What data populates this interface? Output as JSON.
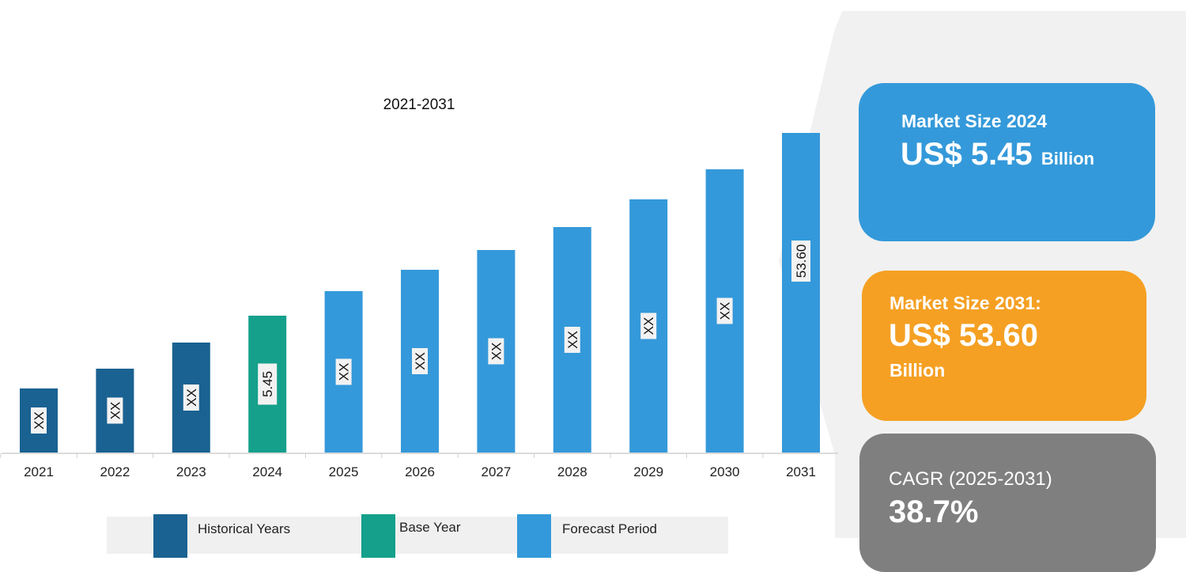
{
  "colors": {
    "historical": "#1a6292",
    "base": "#14a08b",
    "forecast": "#3499da",
    "card_2024": "#3499da",
    "card_2031": "#f5a023",
    "card_cagr": "#7f7f7f",
    "panel": "#f1f1f1"
  },
  "chart_data": {
    "type": "bar",
    "title": "2021-2031",
    "categories": [
      "2021",
      "2022",
      "2023",
      "2024",
      "2025",
      "2026",
      "2027",
      "2028",
      "2029",
      "2030",
      "2031"
    ],
    "values_relative": [
      81,
      106,
      139,
      173,
      204,
      231,
      256,
      285,
      320,
      358,
      404
    ],
    "data_labels": [
      "XX",
      "XX",
      "XX",
      "5.45",
      "XX",
      "XX",
      "XX",
      "XX",
      "XX",
      "XX",
      "53.60"
    ],
    "series_type": [
      "historical",
      "historical",
      "historical",
      "base",
      "forecast",
      "forecast",
      "forecast",
      "forecast",
      "forecast",
      "forecast",
      "forecast"
    ],
    "legend": [
      {
        "name": "Historical Years",
        "key": "historical"
      },
      {
        "name": "Base Year",
        "key": "base"
      },
      {
        "name": "Forecast Period",
        "key": "forecast"
      }
    ],
    "legend_position": "bottom",
    "grid": false,
    "xlabel": "",
    "ylabel": ""
  },
  "cards": {
    "size_2024": {
      "title": "Market Size 2024",
      "value": "US$ 5.45",
      "unit": "Billion"
    },
    "size_2031": {
      "title": "Market Size 2031:",
      "value": "US$ 53.60",
      "unit": "Billion"
    },
    "cagr": {
      "title": "CAGR (2025-2031)",
      "value": "38.7%"
    }
  }
}
